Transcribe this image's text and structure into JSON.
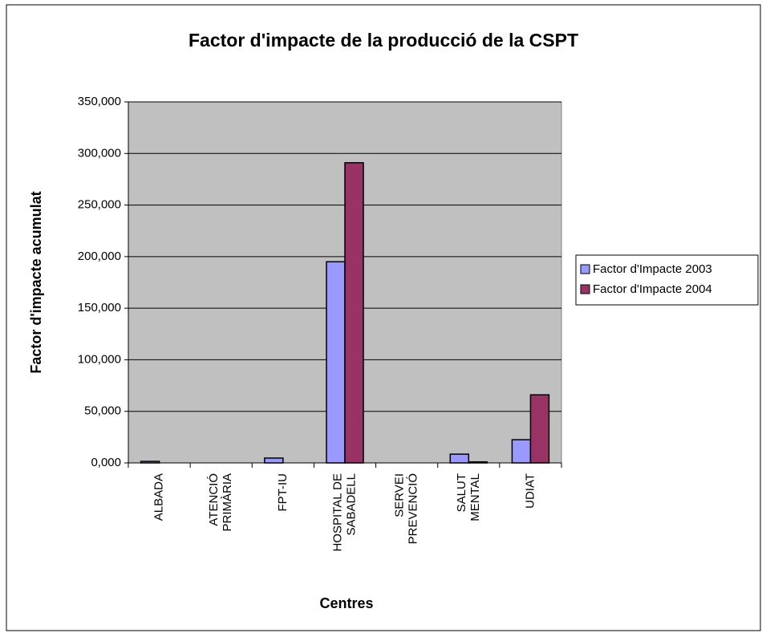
{
  "chart_data": {
    "type": "bar",
    "title": "Factor d'impacte de la producció de la CSPT",
    "x_label": "Centres",
    "y_label": "Factor d'impacte acumulat",
    "categories": [
      [
        "ALBADA"
      ],
      [
        "ATENCIÓ",
        "PRIMÀRIA"
      ],
      [
        "FPT-IU"
      ],
      [
        "HOSPITAL DE",
        "SABADELL"
      ],
      [
        "SERVEI",
        "PREVENCIÓ"
      ],
      [
        "SALUT",
        "MENTAL"
      ],
      [
        "UDIAT"
      ]
    ],
    "series": [
      {
        "name": "Factor d'Impacte 2003",
        "color": "#9999ff",
        "values": [
          1.5,
          0,
          4.7,
          195,
          0,
          8.5,
          22.5
        ]
      },
      {
        "name": "Factor d'Impacte 2004",
        "color": "#993366",
        "values": [
          0,
          0,
          0,
          291,
          0,
          1,
          66
        ]
      }
    ],
    "ylim": [
      0,
      350
    ],
    "yticks": [
      {
        "value": 0,
        "label": "0,000"
      },
      {
        "value": 50,
        "label": "50,000"
      },
      {
        "value": 100,
        "label": "100,000"
      },
      {
        "value": 150,
        "label": "150,000"
      },
      {
        "value": 200,
        "label": "200,000"
      },
      {
        "value": 250,
        "label": "250,000"
      },
      {
        "value": 300,
        "label": "300,000"
      },
      {
        "value": 350,
        "label": "350,000"
      }
    ],
    "grid": true,
    "plot_background": "#c0c0c0",
    "legend": "right"
  }
}
